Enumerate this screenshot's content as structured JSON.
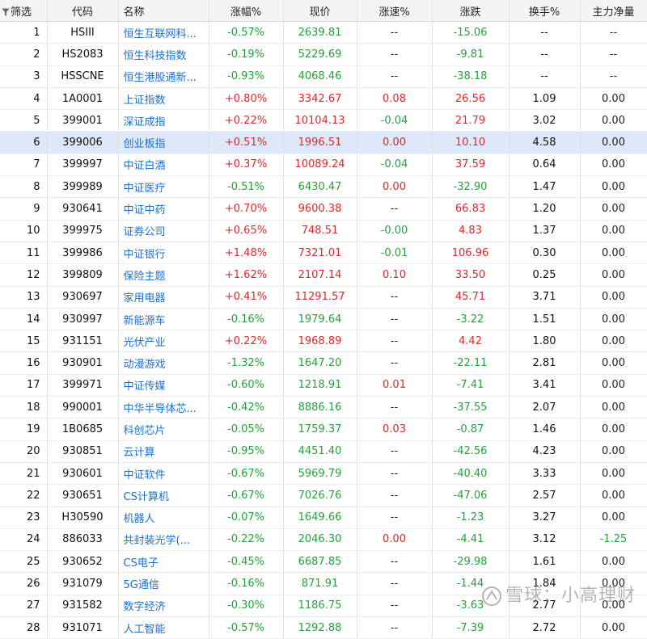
{
  "header": {
    "filter_label": "筛选",
    "columns": [
      "代码",
      "名称",
      "涨幅%",
      "现价",
      "涨速%",
      "涨跌",
      "换手%",
      "主力净量"
    ]
  },
  "selected_row": 6,
  "rows": [
    {
      "n": "1",
      "code": "HSIII",
      "name": "恒生互联网科...",
      "chg": "-0.57%",
      "price": "2639.81",
      "speed": "--",
      "diff": "-15.06",
      "turnover": "--",
      "net": "--"
    },
    {
      "n": "2",
      "code": "HS2083",
      "name": "恒生科技指数",
      "chg": "-0.19%",
      "price": "5229.69",
      "speed": "--",
      "diff": "-9.81",
      "turnover": "--",
      "net": "--"
    },
    {
      "n": "3",
      "code": "HSSCNE",
      "name": "恒生港股通新...",
      "chg": "-0.93%",
      "price": "4068.46",
      "speed": "--",
      "diff": "-38.18",
      "turnover": "--",
      "net": "--"
    },
    {
      "n": "4",
      "code": "1A0001",
      "name": "上证指数",
      "chg": "+0.80%",
      "price": "3342.67",
      "speed": "0.08",
      "diff": "26.56",
      "turnover": "1.09",
      "net": "0.00"
    },
    {
      "n": "5",
      "code": "399001",
      "name": "深证成指",
      "chg": "+0.22%",
      "price": "10104.13",
      "speed": "-0.04",
      "diff": "21.79",
      "turnover": "3.02",
      "net": "0.00"
    },
    {
      "n": "6",
      "code": "399006",
      "name": "创业板指",
      "chg": "+0.51%",
      "price": "1996.51",
      "speed": "0.00",
      "diff": "10.10",
      "turnover": "4.58",
      "net": "0.00"
    },
    {
      "n": "7",
      "code": "399997",
      "name": "中证白酒",
      "chg": "+0.37%",
      "price": "10089.24",
      "speed": "-0.04",
      "diff": "37.59",
      "turnover": "0.64",
      "net": "0.00"
    },
    {
      "n": "8",
      "code": "399989",
      "name": "中证医疗",
      "chg": "-0.51%",
      "price": "6430.47",
      "speed": "0.00",
      "diff": "-32.90",
      "turnover": "1.47",
      "net": "0.00"
    },
    {
      "n": "9",
      "code": "930641",
      "name": "中证中药",
      "chg": "+0.70%",
      "price": "9600.38",
      "speed": "--",
      "diff": "66.83",
      "turnover": "1.20",
      "net": "0.00"
    },
    {
      "n": "10",
      "code": "399975",
      "name": "证券公司",
      "chg": "+0.65%",
      "price": "748.51",
      "speed": "-0.00",
      "diff": "4.83",
      "turnover": "1.37",
      "net": "0.00"
    },
    {
      "n": "11",
      "code": "399986",
      "name": "中证银行",
      "chg": "+1.48%",
      "price": "7321.01",
      "speed": "-0.01",
      "diff": "106.96",
      "turnover": "0.30",
      "net": "0.00"
    },
    {
      "n": "12",
      "code": "399809",
      "name": "保险主题",
      "chg": "+1.62%",
      "price": "2107.14",
      "speed": "0.10",
      "diff": "33.50",
      "turnover": "0.25",
      "net": "0.00"
    },
    {
      "n": "13",
      "code": "930697",
      "name": "家用电器",
      "chg": "+0.41%",
      "price": "11291.57",
      "speed": "--",
      "diff": "45.71",
      "turnover": "3.71",
      "net": "0.00"
    },
    {
      "n": "14",
      "code": "930997",
      "name": "新能源车",
      "chg": "-0.16%",
      "price": "1979.64",
      "speed": "--",
      "diff": "-3.22",
      "turnover": "1.51",
      "net": "0.00"
    },
    {
      "n": "15",
      "code": "931151",
      "name": "光伏产业",
      "chg": "+0.22%",
      "price": "1968.89",
      "speed": "--",
      "diff": "4.42",
      "turnover": "1.80",
      "net": "0.00"
    },
    {
      "n": "16",
      "code": "930901",
      "name": "动漫游戏",
      "chg": "-1.32%",
      "price": "1647.20",
      "speed": "--",
      "diff": "-22.11",
      "turnover": "2.81",
      "net": "0.00"
    },
    {
      "n": "17",
      "code": "399971",
      "name": "中证传媒",
      "chg": "-0.60%",
      "price": "1218.91",
      "speed": "0.01",
      "diff": "-7.41",
      "turnover": "3.41",
      "net": "0.00"
    },
    {
      "n": "18",
      "code": "990001",
      "name": "中华半导体芯...",
      "chg": "-0.42%",
      "price": "8886.16",
      "speed": "--",
      "diff": "-37.55",
      "turnover": "2.07",
      "net": "0.00"
    },
    {
      "n": "19",
      "code": "1B0685",
      "name": "科创芯片",
      "chg": "-0.05%",
      "price": "1759.37",
      "speed": "0.03",
      "diff": "-0.87",
      "turnover": "1.46",
      "net": "0.00"
    },
    {
      "n": "20",
      "code": "930851",
      "name": "云计算",
      "chg": "-0.95%",
      "price": "4451.40",
      "speed": "--",
      "diff": "-42.56",
      "turnover": "4.23",
      "net": "0.00"
    },
    {
      "n": "21",
      "code": "930601",
      "name": "中证软件",
      "chg": "-0.67%",
      "price": "5969.79",
      "speed": "--",
      "diff": "-40.40",
      "turnover": "3.33",
      "net": "0.00"
    },
    {
      "n": "22",
      "code": "930651",
      "name": "CS计算机",
      "chg": "-0.67%",
      "price": "7026.76",
      "speed": "--",
      "diff": "-47.06",
      "turnover": "2.57",
      "net": "0.00"
    },
    {
      "n": "23",
      "code": "H30590",
      "name": "机器人",
      "chg": "-0.07%",
      "price": "1649.66",
      "speed": "--",
      "diff": "-1.23",
      "turnover": "3.27",
      "net": "0.00"
    },
    {
      "n": "24",
      "code": "886033",
      "name": "共封装光学(...",
      "chg": "-0.22%",
      "price": "2046.30",
      "speed": "0.00",
      "diff": "-4.41",
      "turnover": "3.12",
      "net": "-1.25"
    },
    {
      "n": "25",
      "code": "930652",
      "name": "CS电子",
      "chg": "-0.45%",
      "price": "6687.85",
      "speed": "--",
      "diff": "-29.98",
      "turnover": "1.61",
      "net": "0.00"
    },
    {
      "n": "26",
      "code": "931079",
      "name": "5G通信",
      "chg": "-0.16%",
      "price": "871.91",
      "speed": "--",
      "diff": "-1.44",
      "turnover": "1.84",
      "net": "0.00"
    },
    {
      "n": "27",
      "code": "931582",
      "name": "数字经济",
      "chg": "-0.30%",
      "price": "1186.75",
      "speed": "--",
      "diff": "-3.63",
      "turnover": "2.77",
      "net": "0.00"
    },
    {
      "n": "28",
      "code": "931071",
      "name": "人工智能",
      "chg": "-0.57%",
      "price": "1292.88",
      "speed": "--",
      "diff": "-7.39",
      "turnover": "2.72",
      "net": "0.00"
    }
  ],
  "watermark": {
    "text": "雪球：小高理财",
    "icon": "snowball-logo-icon"
  },
  "colors": {
    "up": "#e3262a",
    "down": "#23a33a",
    "name": "#1a6fd2",
    "selected": "#dde9fb",
    "header_bg": "#f4f4f4"
  }
}
